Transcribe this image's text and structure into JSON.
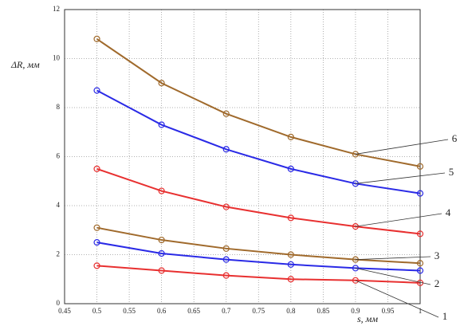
{
  "chart_data": {
    "type": "line",
    "y_label": "ΔR, мм",
    "x_label": "s, мм",
    "x": [
      0.5,
      0.6,
      0.7,
      0.8,
      0.9,
      1
    ],
    "xlim": [
      0.45,
      1
    ],
    "xticks": [
      0.45,
      0.5,
      0.55,
      0.6,
      0.65,
      0.7,
      0.75,
      0.8,
      0.85,
      0.9,
      0.95,
      1
    ],
    "ylim": [
      0,
      12
    ],
    "yticks": [
      0,
      2,
      4,
      6,
      8,
      10,
      12
    ],
    "grid": true,
    "series": [
      {
        "name": "1",
        "color": "#e83030",
        "values": [
          1.55,
          1.35,
          1.15,
          1.0,
          0.95,
          0.85
        ]
      },
      {
        "name": "2",
        "color": "#2a2ae6",
        "values": [
          2.5,
          2.05,
          1.8,
          1.6,
          1.45,
          1.35
        ]
      },
      {
        "name": "3",
        "color": "#a06a2c",
        "values": [
          3.1,
          2.6,
          2.25,
          2.0,
          1.8,
          1.65
        ]
      },
      {
        "name": "4",
        "color": "#e83030",
        "values": [
          5.5,
          4.6,
          3.95,
          3.5,
          3.15,
          2.85
        ]
      },
      {
        "name": "5",
        "color": "#2a2ae6",
        "values": [
          8.7,
          7.3,
          6.3,
          5.5,
          4.9,
          4.5
        ]
      },
      {
        "name": "6",
        "color": "#a06a2c",
        "values": [
          10.8,
          9.0,
          7.75,
          6.8,
          6.1,
          5.6
        ]
      }
    ]
  }
}
